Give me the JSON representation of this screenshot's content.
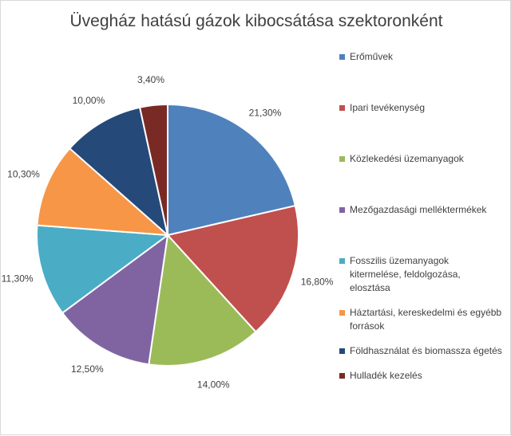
{
  "chart_data": {
    "type": "pie",
    "title": "Üvegház hatású gázok kibocsátása szektoronként",
    "categories": [
      "Erőművek",
      "Ipari tevékenység",
      "Közlekedési üzemanyagok",
      "Mezőgazdasági melléktermékek",
      "Fosszilis üzemanyagok kitermelése, feldolgozása, elosztása",
      "Háztartási, kereskedelmi és egyébb források",
      "Földhasználat és biomassza égetés",
      "Hulladék kezelés"
    ],
    "values": [
      21.3,
      16.8,
      14.0,
      12.5,
      11.3,
      10.3,
      10.0,
      3.4
    ],
    "data_labels": [
      "21,30%",
      "16,80%",
      "14,00%",
      "12,50%",
      "11,30%",
      "10,30%",
      "10,00%",
      "3,40%"
    ],
    "colors": [
      "#4f81bd",
      "#c0504d",
      "#9bbb59",
      "#8064a2",
      "#4bacc6",
      "#f79646",
      "#254a79",
      "#7a2a25"
    ],
    "legend_position": "right"
  }
}
